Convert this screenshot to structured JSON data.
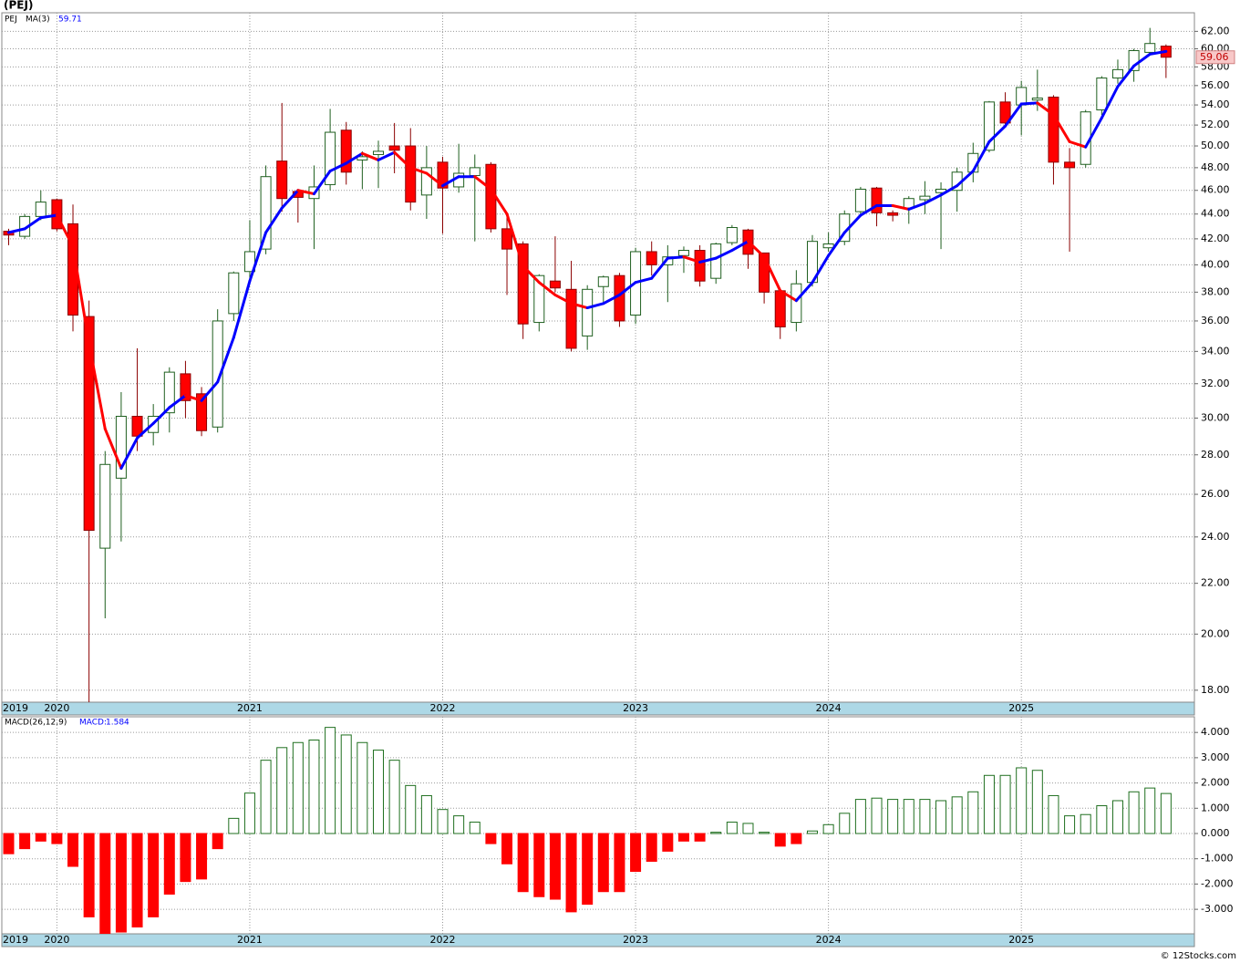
{
  "footer": "© 12Stocks.com",
  "chart_data": [
    {
      "type": "candlestick",
      "title": "(PEJ)",
      "symbol": "PEJ",
      "log_scale": true,
      "grid": true,
      "up_color": "#ffffff",
      "up_stroke": "#1f5f1f",
      "down_color": "#ff0000",
      "down_stroke": "#8b0000",
      "ylim": [
        17.6,
        64.2
      ],
      "yticks": [
        {
          "value": 18,
          "label": "18.00"
        },
        {
          "value": 20,
          "label": "20.00"
        },
        {
          "value": 22,
          "label": "22.00"
        },
        {
          "value": 24,
          "label": "24.00"
        },
        {
          "value": 26,
          "label": "26.00"
        },
        {
          "value": 28,
          "label": "28.00"
        },
        {
          "value": 30,
          "label": "30.00"
        },
        {
          "value": 32,
          "label": "32.00"
        },
        {
          "value": 34,
          "label": "34.00"
        },
        {
          "value": 36,
          "label": "36.00"
        },
        {
          "value": 38,
          "label": "38.00"
        },
        {
          "value": 40,
          "label": "40.00"
        },
        {
          "value": 42,
          "label": "42.00"
        },
        {
          "value": 44,
          "label": "44.00"
        },
        {
          "value": 46,
          "label": "46.00"
        },
        {
          "value": 48,
          "label": "48.00"
        },
        {
          "value": 50,
          "label": "50.00"
        },
        {
          "value": 52,
          "label": "52.00"
        },
        {
          "value": 54,
          "label": "54.00"
        },
        {
          "value": 56,
          "label": "56.00"
        },
        {
          "value": 58,
          "label": "58.00"
        },
        {
          "value": 60,
          "label": "60.00"
        },
        {
          "value": 62,
          "label": "62.00"
        }
      ],
      "xticks": [
        {
          "value": 0,
          "label": "2019"
        },
        {
          "value": 3,
          "label": "2020"
        },
        {
          "value": 15,
          "label": "2021"
        },
        {
          "value": 27,
          "label": "2022"
        },
        {
          "value": 39,
          "label": "2023"
        },
        {
          "value": 51,
          "label": "2024"
        },
        {
          "value": 63,
          "label": "2025"
        }
      ],
      "open": [
        42.6,
        42.2,
        43.8,
        45.2,
        43.2,
        36.3,
        23.5,
        26.8,
        30.1,
        29.2,
        30.3,
        32.6,
        31.4,
        29.5,
        36.5,
        39.5,
        41.2,
        48.6,
        45.9,
        45.3,
        46.5,
        51.5,
        48.7,
        49.2,
        50.0,
        50.0,
        45.6,
        48.5,
        46.3,
        47.3,
        48.3,
        42.8,
        41.6,
        35.9,
        38.8,
        38.2,
        35.0,
        38.4,
        39.2,
        36.4,
        41.0,
        40.0,
        40.7,
        41.1,
        39.0,
        41.7,
        42.7,
        40.9,
        38.1,
        35.9,
        38.7,
        41.3,
        41.8,
        44.2,
        46.2,
        44.1,
        44.5,
        45.2,
        45.8,
        46.0,
        47.6,
        49.6,
        54.3,
        54.0,
        54.5,
        54.8,
        48.5,
        48.3,
        53.5,
        56.8,
        57.6,
        59.6,
        60.3
      ],
      "high": [
        42.8,
        44.0,
        46.0,
        45.3,
        44.8,
        37.4,
        28.2,
        31.5,
        34.2,
        30.8,
        33.0,
        33.4,
        31.8,
        36.8,
        39.5,
        43.5,
        48.2,
        54.2,
        46.1,
        48.2,
        53.6,
        52.3,
        49.5,
        50.5,
        52.2,
        51.7,
        50.0,
        49.0,
        50.2,
        49.2,
        48.5,
        44.0,
        41.8,
        39.3,
        42.2,
        40.3,
        38.5,
        39.2,
        39.4,
        41.3,
        41.8,
        41.5,
        41.4,
        41.5,
        41.7,
        43.1,
        42.8,
        40.9,
        38.2,
        39.6,
        42.3,
        42.5,
        44.3,
        46.3,
        46.3,
        44.3,
        45.5,
        46.8,
        46.7,
        48.0,
        50.3,
        54.4,
        55.3,
        56.5,
        57.7,
        55.0,
        49.8,
        53.5,
        57.0,
        58.8,
        60.0,
        62.4,
        60.5
      ],
      "low": [
        41.5,
        42.0,
        43.5,
        42.6,
        35.3,
        17.6,
        20.6,
        23.8,
        28.2,
        28.5,
        29.2,
        30.0,
        29.0,
        29.2,
        36.0,
        39.0,
        40.8,
        44.2,
        43.3,
        41.2,
        46.0,
        46.5,
        46.1,
        46.2,
        47.5,
        44.3,
        43.6,
        42.4,
        45.8,
        41.8,
        42.5,
        37.8,
        34.8,
        35.3,
        38.0,
        34.0,
        34.1,
        37.2,
        35.6,
        35.8,
        39.2,
        37.3,
        39.4,
        38.4,
        38.6,
        41.5,
        39.7,
        37.2,
        34.8,
        35.3,
        38.4,
        41.0,
        41.5,
        43.8,
        43.0,
        43.4,
        43.2,
        44.0,
        41.2,
        44.2,
        46.7,
        49.4,
        51.8,
        51.0,
        53.4,
        46.5,
        41.0,
        48.0,
        53.0,
        56.2,
        56.4,
        59.4,
        56.8
      ],
      "close": [
        42.3,
        43.8,
        45.0,
        42.8,
        36.4,
        24.3,
        27.5,
        30.1,
        29.0,
        30.1,
        32.7,
        31.0,
        29.3,
        36.0,
        39.4,
        41.0,
        47.2,
        45.3,
        45.4,
        46.3,
        51.3,
        47.6,
        49.0,
        49.5,
        49.6,
        45.0,
        48.0,
        46.2,
        47.5,
        48.0,
        42.8,
        41.2,
        35.8,
        39.2,
        38.3,
        34.2,
        38.2,
        39.1,
        36.0,
        41.0,
        40.0,
        40.6,
        41.1,
        38.8,
        41.6,
        42.9,
        40.8,
        38.0,
        35.6,
        38.6,
        41.8,
        41.6,
        44.0,
        46.1,
        44.1,
        43.9,
        45.3,
        45.5,
        46.1,
        47.6,
        49.3,
        54.3,
        52.2,
        55.8,
        54.7,
        48.5,
        48.0,
        53.3,
        56.8,
        57.7,
        59.8,
        60.6,
        59.06
      ],
      "series": [
        {
          "name": "MA(3)",
          "color": "#0000ff",
          "falling_color": "#ff0000",
          "values": [
            42.5,
            42.8,
            43.7,
            43.9,
            41.4,
            34.5,
            29.4,
            27.3,
            28.9,
            29.7,
            30.6,
            31.3,
            31.0,
            32.1,
            34.9,
            38.8,
            42.5,
            44.5,
            46.0,
            45.7,
            47.7,
            48.4,
            49.3,
            48.7,
            49.4,
            48.0,
            47.5,
            46.4,
            47.2,
            47.2,
            46.1,
            44.0,
            39.9,
            38.7,
            37.8,
            37.2,
            36.9,
            37.2,
            37.8,
            38.7,
            39.0,
            40.5,
            40.6,
            40.2,
            40.5,
            41.1,
            41.8,
            40.6,
            38.1,
            37.4,
            38.7,
            40.7,
            42.5,
            43.9,
            44.7,
            44.7,
            44.4,
            44.9,
            45.6,
            46.4,
            47.7,
            50.4,
            51.9,
            54.1,
            54.2,
            53.0,
            50.4,
            49.9,
            52.7,
            55.9,
            58.1,
            59.4,
            59.71
          ]
        }
      ]
    },
    {
      "type": "bar",
      "indicator": "MACD(26,12,9)",
      "grid": true,
      "positive_color": "#1f6f1f",
      "negative_color": "#ff0000",
      "ylim": [
        -3.97,
        4.62
      ],
      "yticks": [
        {
          "value": -3,
          "label": "-3.000"
        },
        {
          "value": -2,
          "label": "-2.000"
        },
        {
          "value": -1,
          "label": "-1.000"
        },
        {
          "value": 0,
          "label": "0.000"
        },
        {
          "value": 1,
          "label": "1.000"
        },
        {
          "value": 2,
          "label": "2.000"
        },
        {
          "value": 3,
          "label": "3.000"
        },
        {
          "value": 4,
          "label": "4.000"
        }
      ],
      "xticks": [
        {
          "value": 0,
          "label": "2019"
        },
        {
          "value": 3,
          "label": "2020"
        },
        {
          "value": 15,
          "label": "2021"
        },
        {
          "value": 27,
          "label": "2022"
        },
        {
          "value": 39,
          "label": "2023"
        },
        {
          "value": 51,
          "label": "2024"
        },
        {
          "value": 63,
          "label": "2025"
        }
      ],
      "series": [
        {
          "name": "MACD:",
          "values": [
            -0.8,
            -0.6,
            -0.3,
            -0.4,
            -1.3,
            -3.3,
            -4.0,
            -3.9,
            -3.7,
            -3.3,
            -2.4,
            -1.9,
            -1.8,
            -0.6,
            0.6,
            1.6,
            2.9,
            3.4,
            3.6,
            3.7,
            4.2,
            3.9,
            3.6,
            3.3,
            2.9,
            1.9,
            1.5,
            0.95,
            0.7,
            0.45,
            -0.4,
            -1.2,
            -2.3,
            -2.5,
            -2.6,
            -3.1,
            -2.8,
            -2.3,
            -2.3,
            -1.5,
            -1.1,
            -0.7,
            -0.3,
            -0.3,
            0.05,
            0.45,
            0.4,
            0.05,
            -0.5,
            -0.4,
            0.1,
            0.35,
            0.8,
            1.35,
            1.4,
            1.35,
            1.35,
            1.35,
            1.3,
            1.45,
            1.65,
            2.3,
            2.3,
            2.6,
            2.5,
            1.5,
            0.7,
            0.75,
            1.1,
            1.3,
            1.65,
            1.8,
            1.584
          ]
        }
      ]
    }
  ]
}
